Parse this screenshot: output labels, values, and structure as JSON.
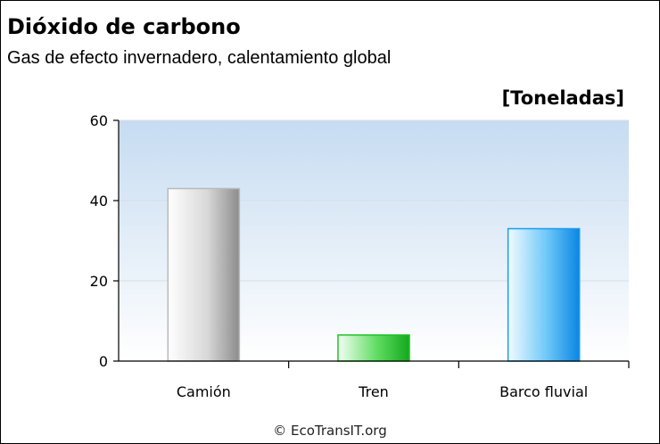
{
  "header": {
    "title": "Dióxido de carbono",
    "subtitle": "Gas de efecto invernadero, calentamiento global",
    "unit": "[Toneladas]"
  },
  "footer": {
    "credit": "© EcoTransIT.org"
  },
  "colors": {
    "camion": "#b9b9b9",
    "tren": "#22c22a",
    "barco": "#1a9cf0",
    "plot_top": "#c6dcf1",
    "plot_bottom": "#ffffff"
  },
  "chart_data": {
    "type": "bar",
    "title": "Dióxido de carbono",
    "subtitle": "Gas de efecto invernadero, calentamiento global",
    "ylabel": "[Toneladas]",
    "categories": [
      "Camión",
      "Tren",
      "Barco fluvial"
    ],
    "values": [
      43,
      6.5,
      33
    ],
    "ylim": [
      0,
      60
    ],
    "yticks": [
      0,
      20,
      40,
      60
    ],
    "grid": true
  }
}
